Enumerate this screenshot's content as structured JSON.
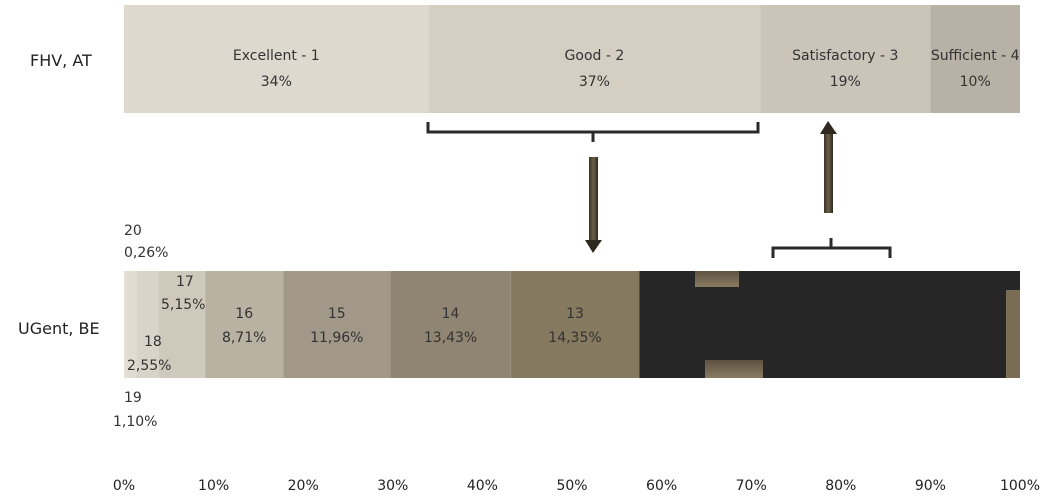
{
  "chart_data": {
    "type": "bar",
    "orientation": "horizontal-stacked",
    "xlim": [
      0,
      100
    ],
    "x_ticks": [
      "0%",
      "10%",
      "20%",
      "30%",
      "40%",
      "50%",
      "60%",
      "70%",
      "80%",
      "90%",
      "100%"
    ],
    "rows": [
      {
        "name": "FHV, AT",
        "segments": [
          {
            "label": "Excellent - 1",
            "value_label": "34%",
            "value": 34,
            "color": "#ddd9cf"
          },
          {
            "label": "Good - 2",
            "value_label": "37%",
            "value": 37,
            "color": "#d4cec3"
          },
          {
            "label": "Satisfactory - 3",
            "value_label": "19%",
            "value": 19,
            "color": "#cac4b9"
          },
          {
            "label": "Sufficient - 4",
            "value_label": "10%",
            "value": 10,
            "color": "#b8b1a5"
          }
        ]
      },
      {
        "name": "UGent, BE",
        "segments": [
          {
            "label": "20",
            "value_label": "0,26%",
            "value": 0.26,
            "color": "#e4e0d6"
          },
          {
            "label": "19",
            "value_label": "1,10%",
            "value": 1.1,
            "color": "#e0dcd2"
          },
          {
            "label": "18",
            "value_label": "2,55%",
            "value": 2.55,
            "color": "#d9d4c9"
          },
          {
            "label": "17",
            "value_label": "5,15%",
            "value": 5.15,
            "color": "#cfc9bc"
          },
          {
            "label": "16",
            "value_label": "8,71%",
            "value": 8.71,
            "color": "#b9b1a2"
          },
          {
            "label": "15",
            "value_label": "11,96%",
            "value": 11.96,
            "color": "#a2988a"
          },
          {
            "label": "14",
            "value_label": "13,43%",
            "value": 13.43,
            "color": "#908572"
          },
          {
            "label": "13",
            "value_label": "14,35%",
            "value": 14.35,
            "color": "#85795f"
          },
          {
            "label": "",
            "value_label": "",
            "value": 42.49,
            "color": "#262626"
          }
        ]
      }
    ],
    "annotations": [
      {
        "type": "bracket-arrow-down",
        "from": [
          34,
          71
        ],
        "to_row": "UGent, BE"
      },
      {
        "type": "bracket-arrow-up",
        "from": [
          72,
          86
        ],
        "to_row": "FHV, AT"
      }
    ]
  }
}
